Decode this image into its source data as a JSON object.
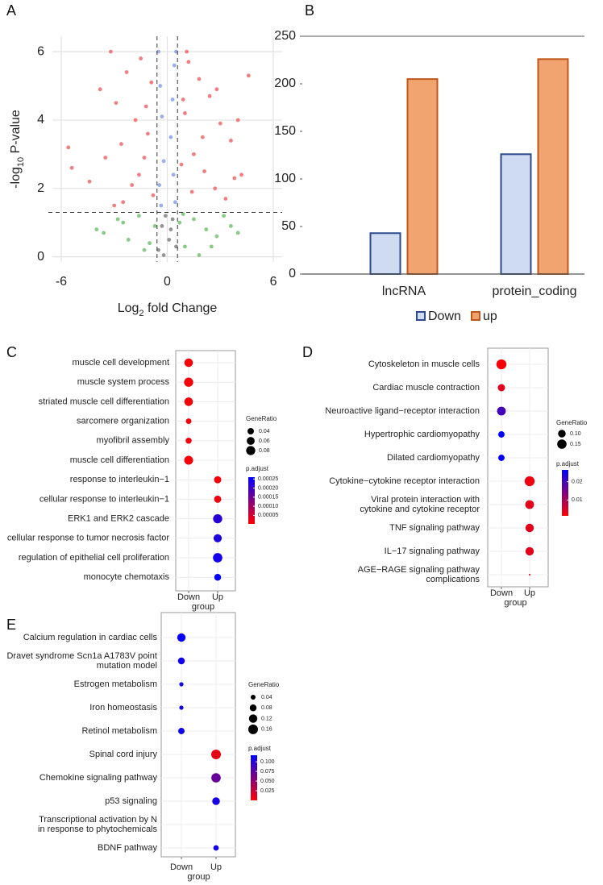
{
  "chart_data": [
    {
      "type": "scatter",
      "panel": "A",
      "xlabel": [
        "Log",
        "2",
        " fold Change"
      ],
      "ylabel": [
        "-log",
        "10",
        " P-value"
      ],
      "xlim": [
        -6.5,
        6.5
      ],
      "ylim": [
        -0.15,
        6.45
      ],
      "xticks": [
        -6,
        0,
        6
      ],
      "yticks": [
        0,
        2,
        4,
        6
      ],
      "grid": true,
      "vlines": [
        -0.58,
        0.58
      ],
      "hline": 1.3,
      "series": [
        {
          "color": "#7cc47a",
          "x": [
            -4.0,
            -3.6,
            -2.8,
            -2.2,
            -1.6,
            -1.0,
            -0.7,
            0.7,
            1.0,
            1.5,
            2.2,
            2.8,
            3.2,
            3.6,
            4.0,
            -1.3,
            1.8,
            2.5,
            -2.5,
            0.9
          ],
          "values": [
            0.8,
            0.7,
            1.1,
            0.5,
            1.2,
            0.4,
            0.9,
            1.0,
            0.3,
            1.1,
            0.8,
            0.6,
            1.2,
            0.9,
            0.7,
            0.2,
            0.05,
            0.3,
            1.0,
            1.25
          ]
        },
        {
          "color": "#888888",
          "x": [
            -0.5,
            -0.3,
            -0.1,
            0.1,
            0.3,
            0.5,
            -0.2,
            0.2
          ],
          "values": [
            0.2,
            0.9,
            1.2,
            0.5,
            1.1,
            0.3,
            0.05,
            0.8
          ]
        },
        {
          "color": "#f07072",
          "x": [
            -5.6,
            -5.4,
            -4.4,
            -3.8,
            -3.5,
            -3.2,
            -2.9,
            -2.6,
            -2.3,
            -2.0,
            -1.8,
            -1.5,
            -1.3,
            -1.1,
            -0.9,
            -0.8,
            -2.5,
            -1.6,
            -1.2,
            -3.0,
            1.0,
            1.2,
            1.5,
            1.8,
            2.1,
            2.4,
            2.7,
            3.0,
            3.3,
            3.6,
            4.0,
            4.2,
            4.6,
            0.8,
            1.4,
            2.0,
            2.8,
            1.1,
            0.9,
            3.8
          ],
          "values": [
            3.2,
            2.6,
            2.2,
            4.9,
            2.9,
            6.0,
            4.5,
            3.3,
            5.4,
            2.1,
            4.0,
            5.8,
            2.9,
            3.6,
            5.1,
            1.8,
            1.6,
            2.4,
            4.4,
            1.5,
            4.2,
            5.7,
            3.0,
            5.2,
            2.5,
            4.7,
            2.0,
            3.9,
            1.7,
            3.4,
            4.0,
            2.4,
            5.3,
            2.7,
            1.9,
            3.5,
            4.9,
            6.0,
            4.6,
            2.3
          ]
        },
        {
          "color": "#8fa4ea",
          "x": [
            -0.5,
            -0.4,
            -0.3,
            -0.2,
            0.2,
            0.3,
            0.4,
            0.5,
            -0.45,
            0.45,
            -0.35,
            0.35
          ],
          "values": [
            6.0,
            5.0,
            4.1,
            2.8,
            3.5,
            4.6,
            5.6,
            6.0,
            2.1,
            1.6,
            1.5,
            2.4
          ]
        }
      ]
    },
    {
      "type": "bar",
      "panel": "B",
      "categories": [
        "lncRNA",
        "protein_coding"
      ],
      "ylim": [
        0,
        250
      ],
      "yticks": [
        0,
        50,
        100,
        150,
        200,
        250
      ],
      "series": [
        {
          "name": "Down",
          "color": "#cfdbf1",
          "edge": "#2c4a8c",
          "values": [
            43,
            126
          ]
        },
        {
          "name": "up",
          "color": "#f1a46f",
          "edge": "#c0561b",
          "values": [
            205,
            226
          ]
        }
      ]
    },
    {
      "type": "dot",
      "panel": "C",
      "terms": [
        "muscle cell development",
        "muscle system process",
        "striated muscle cell differentiation",
        "sarcomere organization",
        "myofibril assembly",
        "muscle cell differentiation",
        "response to interleukin−1",
        "cellular response to interleukin−1",
        "ERK1 and ERK2 cascade",
        "cellular response to tumor necrosis factor",
        "regulation of epithelial cell proliferation",
        "monocyte chemotaxis"
      ],
      "groups": [
        "Down",
        "Up"
      ],
      "xlabel": "group",
      "group_of_term": [
        "Down",
        "Down",
        "Down",
        "Down",
        "Down",
        "Down",
        "Up",
        "Up",
        "Up",
        "Up",
        "Up",
        "Up"
      ],
      "gene_ratio": [
        0.07,
        0.08,
        0.07,
        0.03,
        0.035,
        0.075,
        0.05,
        0.05,
        0.08,
        0.065,
        0.085,
        0.045
      ],
      "p_adjust": [
        1e-05,
        1e-05,
        1e-05,
        1e-05,
        1e-05,
        1e-05,
        1e-05,
        2e-05,
        0.00022,
        0.00023,
        0.00024,
        0.00028
      ],
      "size_title": "GeneRatio",
      "size_ticks": [
        0.04,
        {
          "value": 0.06,
          "label": "0.06"
        },
        0.08
      ],
      "color_title": "p.adjust",
      "clim": [
        3e-06,
        0.00026
      ],
      "colors": [
        "#ff0000",
        "#0000ff"
      ],
      "color_ticks": [
        0.00025,
        {
          "value": 0.0002,
          "label": "0.00020"
        },
        0.00015,
        {
          "value": 0.0001,
          "label": "0.00010"
        },
        5e-05
      ]
    },
    {
      "type": "dot",
      "panel": "D",
      "terms": [
        "Cytoskeleton in muscle cells",
        "Cardiac muscle contraction",
        "Neuroactive ligand−receptor interaction",
        "Hypertrophic cardiomyopathy",
        "Dilated cardiomyopathy",
        "Cytokine−cytokine receptor interaction",
        [
          "Viral protein interaction with",
          "cytokine and cytokine receptor"
        ],
        "TNF signaling pathway",
        "IL−17 signaling pathway",
        [
          "AGE−RAGE signaling pathway",
          "complications"
        ]
      ],
      "groups": [
        "Down",
        "Up"
      ],
      "xlabel": "group",
      "group_of_term": [
        "Down",
        "Down",
        "Down",
        "Down",
        "Down",
        "Up",
        "Up",
        "Up",
        "Up",
        "Up"
      ],
      "gene_ratio": [
        0.17,
        0.09,
        0.13,
        0.07,
        0.07,
        0.17,
        0.13,
        0.12,
        0.12,
        0.005
      ],
      "p_adjust": [
        0.002,
        0.004,
        0.02,
        0.03,
        0.03,
        0.003,
        0.004,
        0.004,
        0.004,
        0.004
      ],
      "size_title": "GeneRatio",
      "size_ticks": [
        {
          "value": 0.1,
          "label": "0.10"
        },
        0.15
      ],
      "color_title": "p.adjust",
      "clim": [
        0.0013,
        0.0265
      ],
      "colors": [
        "#ff0000",
        "#0000ff"
      ],
      "color_ticks": [
        0.02,
        0.01
      ]
    },
    {
      "type": "dot",
      "panel": "E",
      "terms": [
        "Calcium regulation in cardiac cells",
        [
          "Dravet syndrome Scn1a A1783V point",
          "mutation model"
        ],
        "Estrogen metabolism",
        "Iron homeostasis",
        "Retinol metabolism",
        "Spinal cord injury",
        "Chemokine signaling pathway",
        "p53 signaling",
        [
          "Transcriptional activation by N",
          "in response to phytochemicals"
        ],
        "BDNF pathway"
      ],
      "groups": [
        "Down",
        "Up"
      ],
      "xlabel": "group",
      "group_of_term": [
        "Down",
        "Down",
        "Down",
        "Down",
        "Down",
        "Up",
        "Up",
        "Up",
        null,
        "Up"
      ],
      "gene_ratio": [
        0.12,
        0.08,
        0.03,
        0.03,
        0.07,
        0.16,
        0.15,
        0.1,
        null,
        0.05
      ],
      "p_adjust": [
        0.115,
        0.11,
        0.11,
        0.11,
        0.11,
        0.01,
        0.07,
        0.105,
        null,
        0.11
      ],
      "size_title": "GeneRatio",
      "size_ticks": [
        0.04,
        0.08,
        0.12,
        0.16
      ],
      "color_title": "p.adjust",
      "clim": [
        0,
        0.117
      ],
      "colors": [
        "#ff0000",
        "#0000ff"
      ],
      "color_ticks": [
        {
          "value": 0.1,
          "label": "0.100"
        },
        0.075,
        {
          "value": 0.05,
          "label": "0.050"
        },
        0.025
      ]
    }
  ]
}
